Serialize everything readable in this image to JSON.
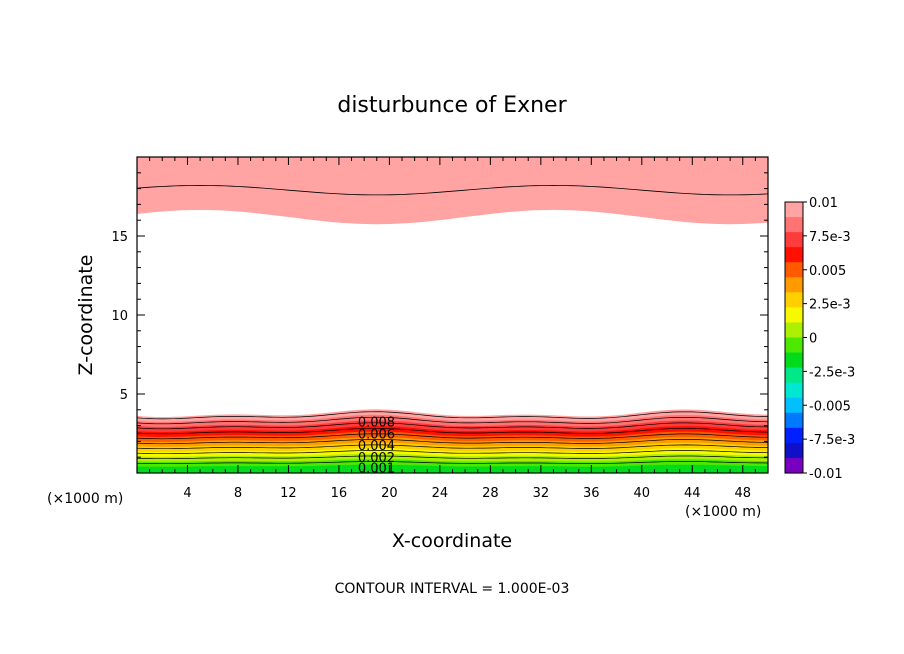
{
  "chart_data": {
    "type": "heatmap",
    "title": "disturbunce of Exner",
    "xlabel": "X-coordinate",
    "ylabel": "Z-coordinate",
    "x_unit": "(×1000 m)",
    "xlim": [
      0,
      50
    ],
    "ylim": [
      0,
      20
    ],
    "x_ticks": [
      "4",
      "8",
      "12",
      "16",
      "20",
      "24",
      "28",
      "32",
      "36",
      "40",
      "44",
      "48"
    ],
    "y_ticks": [
      "5",
      "10",
      "15"
    ],
    "colorbar": {
      "range": [
        -0.01,
        0.01
      ],
      "labels": [
        "0.01",
        "7.5e-3",
        "0.005",
        "2.5e-3",
        "0",
        "-2.5e-3",
        "-0.005",
        "-7.5e-3",
        "-0.01"
      ],
      "colors": [
        "#ffa3a3",
        "#ff7373",
        "#ff3c3c",
        "#ff1000",
        "#ff5a00",
        "#ff9b00",
        "#ffcf00",
        "#f8f800",
        "#aaf000",
        "#4ce800",
        "#00dc1c",
        "#00e888",
        "#00e8d2",
        "#00c0ff",
        "#0078ff",
        "#0020ff",
        "#1010c8",
        "#7800c0"
      ]
    },
    "contour_labels": [
      "0.008",
      "0.006",
      "0.004",
      "0.002",
      "0.001"
    ],
    "footer": "CONTOUR INTERVAL = 1.000E-03"
  }
}
